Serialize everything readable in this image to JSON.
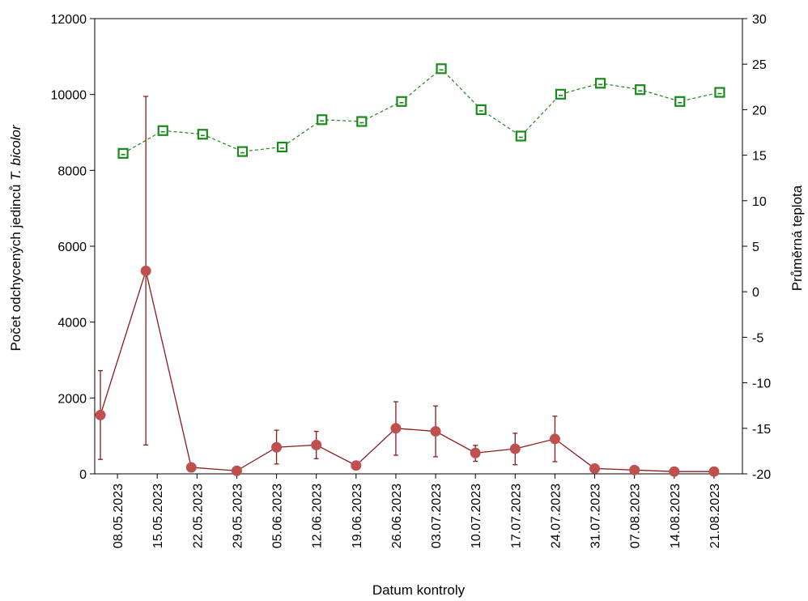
{
  "chart_data": {
    "type": "line",
    "xlabel": "Datum kontroly",
    "ylabel_left": "Počet odchycených jedinců ",
    "ylabel_left_italic": "T. bicolor",
    "ylabel_right": "Průměrná teplota",
    "ylim_left": [
      0,
      12000
    ],
    "ylim_right": [
      -20,
      30
    ],
    "yticks_left": [
      "0",
      "2000",
      "4000",
      "6000",
      "8000",
      "10000",
      "12000"
    ],
    "yticks_right": [
      "-20",
      "-15",
      "-10",
      "-5",
      "0",
      "5",
      "10",
      "15",
      "20",
      "25",
      "30"
    ],
    "x_tick_labels": [
      "08.05.2023",
      "15.05.2023",
      "22.05.2023",
      "29.05.2023",
      "05.06.2023",
      "12.06.2023",
      "19.06.2023",
      "26.06.2023",
      "03.07.2023",
      "10.07.2023",
      "17.07.2023",
      "24.07.2023",
      "31.07.2023",
      "07.08.2023",
      "14.08.2023",
      "21.08.2023"
    ],
    "grid": false,
    "series": [
      {
        "axis": "left",
        "color": "#8b1a1a",
        "marker": "circle",
        "line_style": "solid",
        "error_bars": true,
        "points": [
          {
            "x": "05.05.2023",
            "y": 1550,
            "low": 380,
            "high": 2720
          },
          {
            "x": "13.05.2023",
            "y": 5350,
            "low": 760,
            "high": 9950
          },
          {
            "x": "21.05.2023",
            "y": 170,
            "low": 170,
            "high": 170
          },
          {
            "x": "29.05.2023",
            "y": 80,
            "low": 80,
            "high": 80
          },
          {
            "x": "05.06.2023",
            "y": 700,
            "low": 260,
            "high": 1150
          },
          {
            "x": "12.06.2023",
            "y": 760,
            "low": 400,
            "high": 1120
          },
          {
            "x": "19.06.2023",
            "y": 220,
            "low": 220,
            "high": 220
          },
          {
            "x": "26.06.2023",
            "y": 1200,
            "low": 490,
            "high": 1900
          },
          {
            "x": "03.07.2023",
            "y": 1120,
            "low": 450,
            "high": 1790
          },
          {
            "x": "10.07.2023",
            "y": 550,
            "low": 330,
            "high": 750
          },
          {
            "x": "17.07.2023",
            "y": 660,
            "low": 240,
            "high": 1070
          },
          {
            "x": "24.07.2023",
            "y": 920,
            "low": 320,
            "high": 1520
          },
          {
            "x": "31.07.2023",
            "y": 140,
            "low": 140,
            "high": 140
          },
          {
            "x": "07.08.2023",
            "y": 100,
            "low": 100,
            "high": 100
          },
          {
            "x": "14.08.2023",
            "y": 60,
            "low": 60,
            "high": 60
          },
          {
            "x": "21.08.2023",
            "y": 60,
            "low": 60,
            "high": 60
          }
        ]
      },
      {
        "axis": "right",
        "color": "#1a8a1a",
        "marker": "square-open",
        "line_style": "dashed",
        "points": [
          {
            "x": "09.05.2023",
            "y": 15.2
          },
          {
            "x": "16.05.2023",
            "y": 17.7
          },
          {
            "x": "23.05.2023",
            "y": 17.3
          },
          {
            "x": "30.05.2023",
            "y": 15.4
          },
          {
            "x": "06.06.2023",
            "y": 15.9
          },
          {
            "x": "13.06.2023",
            "y": 18.9
          },
          {
            "x": "20.06.2023",
            "y": 18.7
          },
          {
            "x": "27.06.2023",
            "y": 20.9
          },
          {
            "x": "04.07.2023",
            "y": 24.5
          },
          {
            "x": "11.07.2023",
            "y": 20.0
          },
          {
            "x": "18.07.2023",
            "y": 17.1
          },
          {
            "x": "25.07.2023",
            "y": 21.7
          },
          {
            "x": "01.08.2023",
            "y": 22.9
          },
          {
            "x": "08.08.2023",
            "y": 22.2
          },
          {
            "x": "15.08.2023",
            "y": 20.9
          },
          {
            "x": "22.08.2023",
            "y": 21.9
          }
        ]
      }
    ]
  }
}
